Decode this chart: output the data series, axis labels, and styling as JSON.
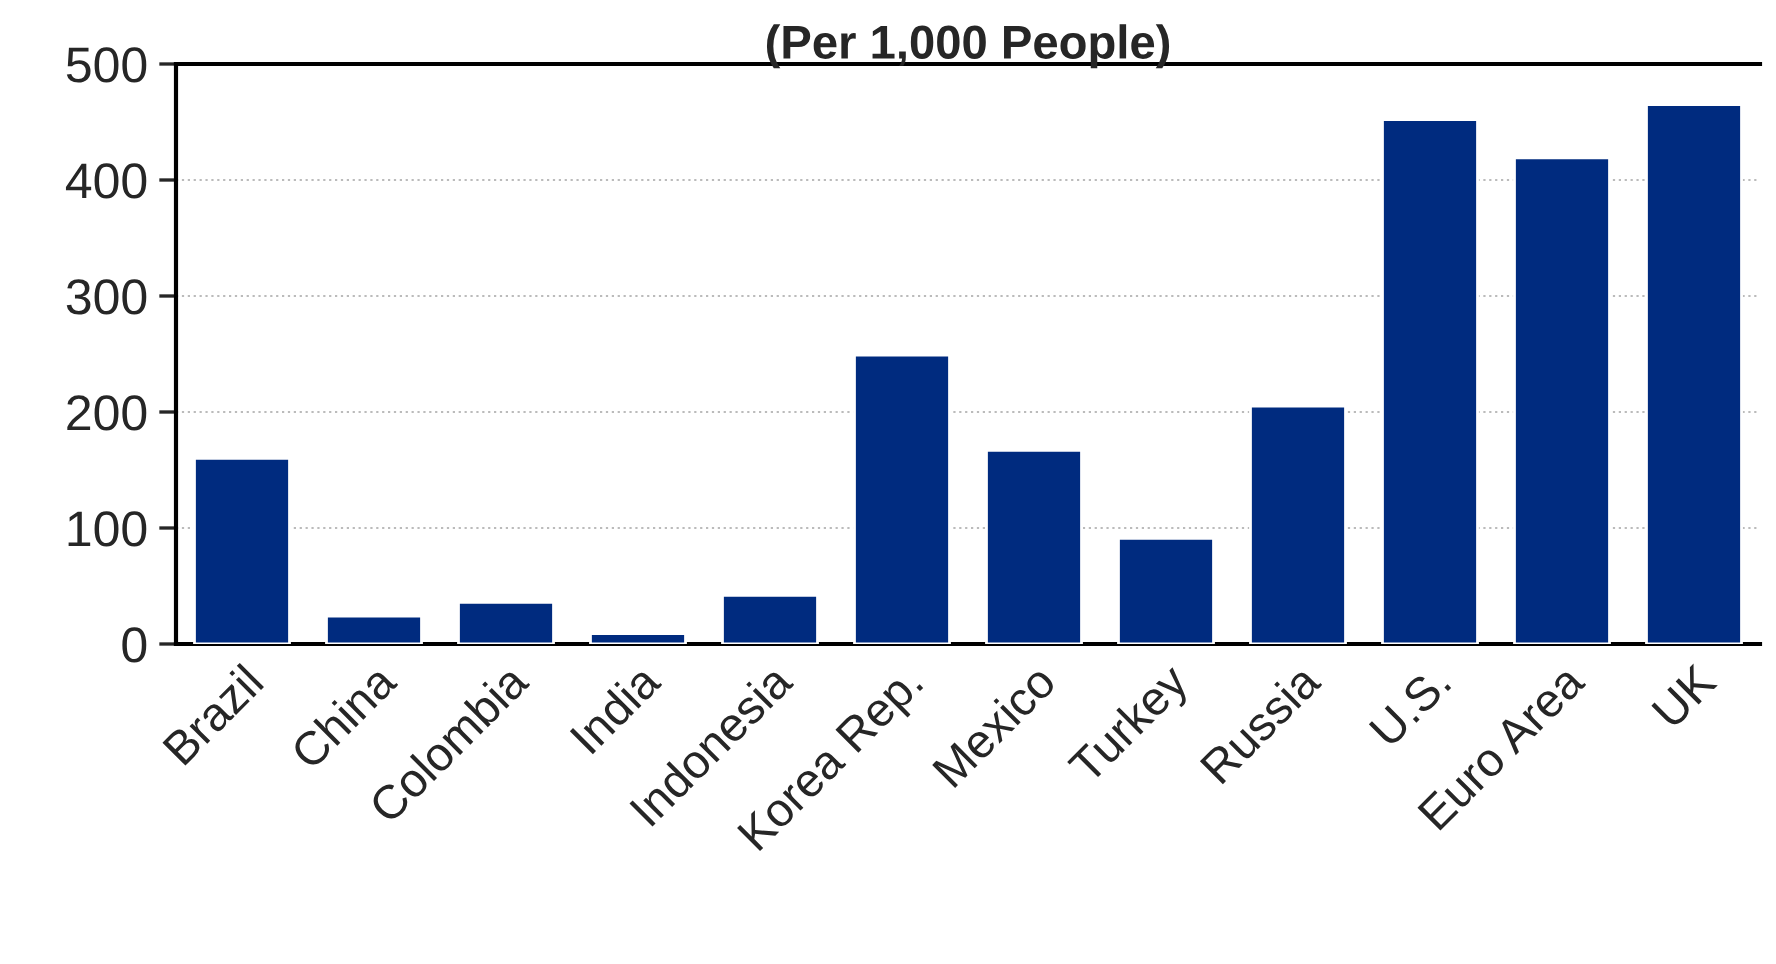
{
  "chart_data": {
    "type": "bar",
    "title": "(Per 1,000 People)",
    "categories": [
      "Brazil",
      "China",
      "Colombia",
      "India",
      "Indonesia",
      "Korea Rep.",
      "Mexico",
      "Turkey",
      "Russia",
      "U.S.",
      "Euro Area",
      "UK"
    ],
    "values": [
      160,
      24,
      36,
      9,
      42,
      249,
      167,
      91,
      205,
      452,
      419,
      465
    ],
    "color": "#002b7f",
    "ylim": [
      0,
      500
    ],
    "yticks": [
      0,
      100,
      200,
      300,
      400,
      500
    ],
    "grid": "y"
  }
}
